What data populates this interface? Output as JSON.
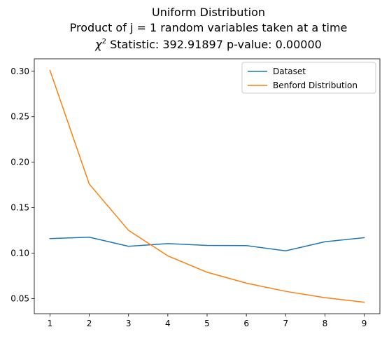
{
  "chart_data": {
    "type": "line",
    "title_lines": [
      "Uniform Distribution",
      "Product of j = 1 random variables taken at a time"
    ],
    "stat_line": {
      "chi_symbol": "χ",
      "chi_exponent": "2",
      "text": " Statistic: 392.91897 p-value: 0.00000"
    },
    "xlabel": "",
    "ylabel": "",
    "x": [
      1,
      2,
      3,
      4,
      5,
      6,
      7,
      8,
      9
    ],
    "x_ticks": [
      "1",
      "2",
      "3",
      "4",
      "5",
      "6",
      "7",
      "8",
      "9"
    ],
    "y_ticks": [
      {
        "value": 0.05,
        "label": "0.05"
      },
      {
        "value": 0.1,
        "label": "0.10"
      },
      {
        "value": 0.15,
        "label": "0.15"
      },
      {
        "value": 0.2,
        "label": "0.20"
      },
      {
        "value": 0.25,
        "label": "0.25"
      },
      {
        "value": 0.3,
        "label": "0.30"
      }
    ],
    "xlim": [
      0.6,
      9.4
    ],
    "ylim": [
      0.0334,
      0.3137
    ],
    "grid": false,
    "legend_position": "top-right",
    "series": [
      {
        "name": "Dataset",
        "color": "#1f77b4",
        "values": [
          0.116,
          0.1175,
          0.1075,
          0.1105,
          0.1085,
          0.1083,
          0.1025,
          0.1125,
          0.117
        ]
      },
      {
        "name": "Benford Distribution",
        "color": "#ff7f0e",
        "values": [
          0.301,
          0.176,
          0.125,
          0.097,
          0.079,
          0.067,
          0.058,
          0.051,
          0.046
        ]
      }
    ]
  }
}
